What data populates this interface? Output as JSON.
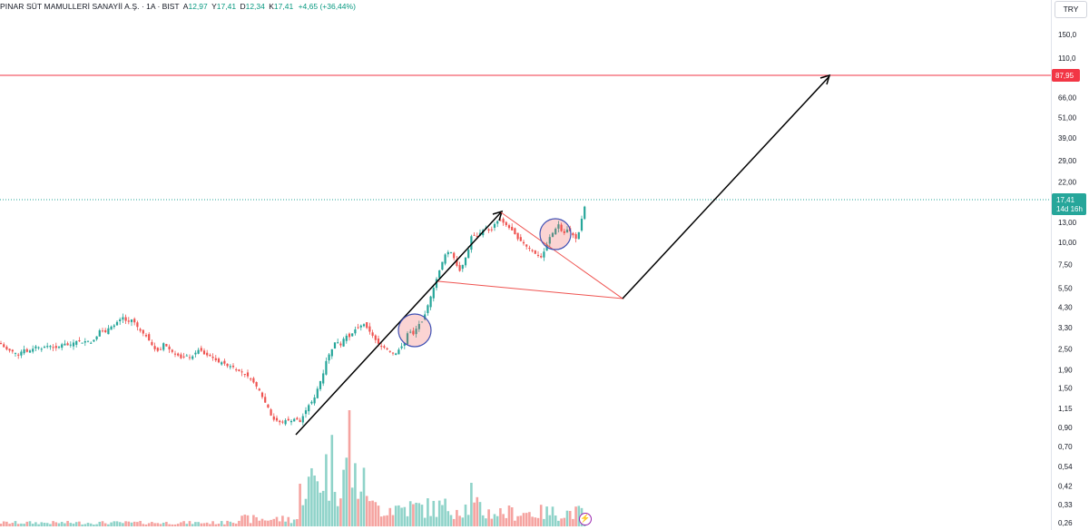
{
  "header": {
    "symbol": "PINAR SÜT MAMULLERİ SANAYİİ A.Ş.",
    "interval": "1A",
    "exchange": "BIST",
    "open_label": "A",
    "open": "12,97",
    "high_label": "Y",
    "high": "17,41",
    "low_label": "D",
    "low": "12,34",
    "close_label": "K",
    "close": "17,41",
    "change": "+4,65 (+36,44%)"
  },
  "currency": "TRY",
  "colors": {
    "up": "#26a69a",
    "down": "#ef5350",
    "up_volume": "#8fd3c9",
    "down_volume": "#f5a3a0",
    "target_line": "#f23645",
    "price_tag": "#26a69a",
    "drawing": "#000000"
  },
  "chart_data": {
    "type": "candlestick",
    "scale": "log",
    "grid": false,
    "y_ticks": [
      "150,0",
      "110,0",
      "66,00",
      "51,00",
      "39,00",
      "29,00",
      "22,00",
      "13,00",
      "10,00",
      "7,50",
      "5,50",
      "4,30",
      "3,30",
      "2,50",
      "1,90",
      "1,50",
      "1,15",
      "0,90",
      "0,70",
      "0,54",
      "0,42",
      "0,33",
      "0,26"
    ],
    "y_tick_values": [
      150,
      110,
      66,
      51,
      39,
      29,
      22,
      13,
      10,
      7.5,
      5.5,
      4.3,
      3.3,
      2.5,
      1.9,
      1.5,
      1.15,
      0.9,
      0.7,
      0.54,
      0.42,
      0.33,
      0.26
    ],
    "target_price": 87.95,
    "target_label": "87,95",
    "last_price": 17.41,
    "last_price_label": "17,41",
    "countdown_label": "14d 16h",
    "close_path": [
      [
        0,
        2.7
      ],
      [
        6,
        2.5
      ],
      [
        10,
        2.45
      ],
      [
        16,
        2.4
      ],
      [
        20,
        2.3
      ],
      [
        26,
        2.5
      ],
      [
        30,
        2.4
      ],
      [
        36,
        2.5
      ],
      [
        40,
        2.6
      ],
      [
        46,
        2.5
      ],
      [
        50,
        2.6
      ],
      [
        56,
        2.6
      ],
      [
        60,
        2.5
      ],
      [
        66,
        2.6
      ],
      [
        70,
        2.7
      ],
      [
        76,
        2.6
      ],
      [
        80,
        2.7
      ],
      [
        86,
        2.8
      ],
      [
        90,
        2.7
      ],
      [
        96,
        2.8
      ],
      [
        100,
        2.7
      ],
      [
        106,
        2.9
      ],
      [
        110,
        3.2
      ],
      [
        116,
        3.1
      ],
      [
        120,
        3.3
      ],
      [
        126,
        3.4
      ],
      [
        130,
        3.6
      ],
      [
        136,
        3.8
      ],
      [
        140,
        3.5
      ],
      [
        146,
        3.7
      ],
      [
        150,
        3.4
      ],
      [
        156,
        3.1
      ],
      [
        160,
        3.0
      ],
      [
        166,
        2.7
      ],
      [
        170,
        2.5
      ],
      [
        176,
        2.4
      ],
      [
        180,
        2.7
      ],
      [
        186,
        2.5
      ],
      [
        190,
        2.4
      ],
      [
        196,
        2.3
      ],
      [
        200,
        2.2
      ],
      [
        206,
        2.3
      ],
      [
        210,
        2.2
      ],
      [
        216,
        2.4
      ],
      [
        220,
        2.5
      ],
      [
        226,
        2.3
      ],
      [
        230,
        2.3
      ],
      [
        236,
        2.2
      ],
      [
        240,
        2.1
      ],
      [
        246,
        2.1
      ],
      [
        250,
        2.0
      ],
      [
        256,
        2.0
      ],
      [
        260,
        1.9
      ],
      [
        266,
        1.85
      ],
      [
        270,
        1.8
      ],
      [
        276,
        1.7
      ],
      [
        280,
        1.6
      ],
      [
        286,
        1.45
      ],
      [
        290,
        1.3
      ],
      [
        296,
        1.15
      ],
      [
        300,
        1.0
      ],
      [
        306,
        0.98
      ],
      [
        310,
        0.95
      ],
      [
        316,
        1.0
      ],
      [
        320,
        0.97
      ],
      [
        326,
        1.02
      ],
      [
        330,
        0.95
      ],
      [
        336,
        1.1
      ],
      [
        340,
        1.2
      ],
      [
        346,
        1.3
      ],
      [
        350,
        1.5
      ],
      [
        356,
        1.8
      ],
      [
        360,
        2.2
      ],
      [
        366,
        2.5
      ],
      [
        370,
        2.8
      ],
      [
        376,
        2.6
      ],
      [
        380,
        3.0
      ],
      [
        386,
        2.9
      ],
      [
        390,
        3.2
      ],
      [
        396,
        3.3
      ],
      [
        400,
        3.5
      ],
      [
        406,
        3.2
      ],
      [
        410,
        3.0
      ],
      [
        416,
        2.7
      ],
      [
        420,
        2.6
      ],
      [
        426,
        2.5
      ],
      [
        430,
        2.4
      ],
      [
        436,
        2.35
      ],
      [
        440,
        2.5
      ],
      [
        446,
        2.7
      ],
      [
        450,
        3.2
      ],
      [
        456,
        3.0
      ],
      [
        460,
        3.4
      ],
      [
        466,
        3.6
      ],
      [
        470,
        4.2
      ],
      [
        476,
        5.2
      ],
      [
        480,
        6.0
      ],
      [
        486,
        7.4
      ],
      [
        490,
        8.5
      ],
      [
        496,
        9.0
      ],
      [
        500,
        8.2
      ],
      [
        506,
        6.8
      ],
      [
        510,
        7.5
      ],
      [
        516,
        9.0
      ],
      [
        520,
        11.2
      ],
      [
        526,
        10.8
      ],
      [
        530,
        11.5
      ],
      [
        536,
        12.2
      ],
      [
        540,
        11.4
      ],
      [
        546,
        13.0
      ],
      [
        550,
        13.4
      ],
      [
        556,
        12.8
      ],
      [
        560,
        12.2
      ],
      [
        566,
        11.5
      ],
      [
        570,
        10.5
      ],
      [
        576,
        10.0
      ],
      [
        580,
        9.5
      ],
      [
        586,
        9.0
      ],
      [
        590,
        8.6
      ],
      [
        596,
        8.2
      ],
      [
        600,
        9.0
      ],
      [
        606,
        10.8
      ],
      [
        610,
        11.5
      ],
      [
        616,
        12.8
      ],
      [
        620,
        11.0
      ],
      [
        626,
        12.0
      ],
      [
        630,
        11.2
      ],
      [
        636,
        10.3
      ],
      [
        640,
        12.97
      ],
      [
        646,
        17.41
      ]
    ],
    "volume_note": "relative volume bars beneath price, peak near x 385"
  },
  "annotations": {
    "uptrend_arrow": true,
    "target_arrow": true,
    "circles": 2,
    "triangle": true
  }
}
